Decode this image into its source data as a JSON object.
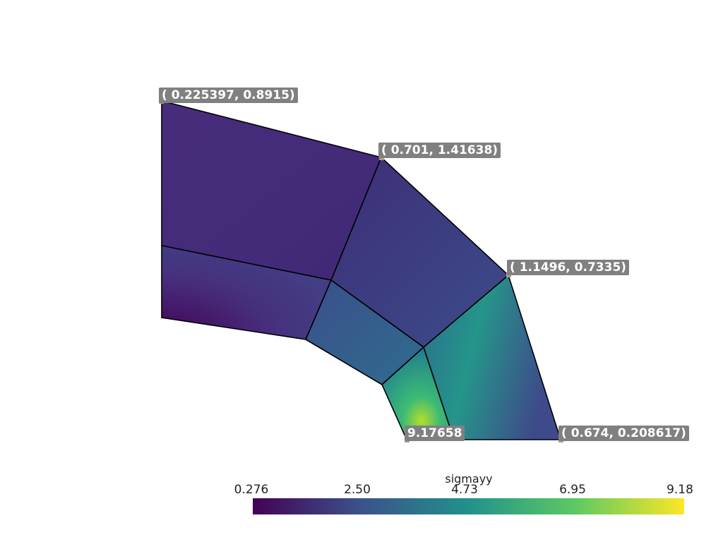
{
  "field_name": "sigmayy",
  "colorbar": {
    "ticks": [
      "0.276",
      "2.50",
      "4.73",
      "6.95",
      "9.18"
    ],
    "colors": [
      "#440154",
      "#3b528b",
      "#21918c",
      "#5ec962",
      "#fde725"
    ]
  },
  "labels": {
    "p1": "( 0.225397, 0.8915)",
    "p2": "( 0.701, 1.41638)",
    "p3": "( 1.1496, 0.7335)",
    "p4": "9.17658",
    "p5": "( 0.674, 0.208617)"
  }
}
